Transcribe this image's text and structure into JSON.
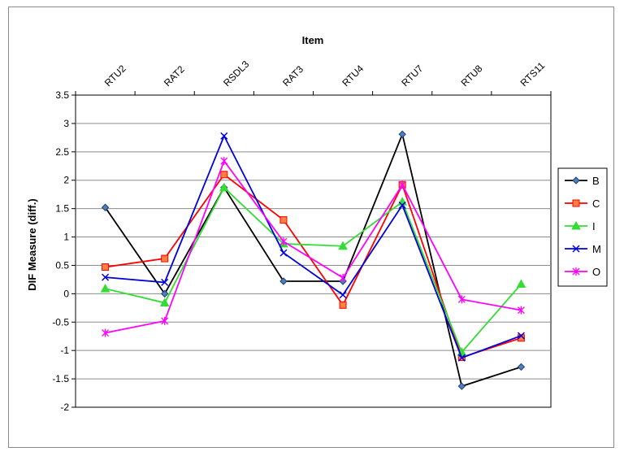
{
  "chart_data": {
    "type": "line",
    "title": "",
    "xlabel": "Item",
    "ylabel": "DIF Measure (diff.)",
    "categories": [
      "RTU2",
      "RAT2",
      "RSDL3",
      "RAT3",
      "RTU4",
      "RTU7",
      "RTU8",
      "RTS11"
    ],
    "ylim": [
      -2,
      3.5
    ],
    "yticks": [
      "3.5",
      "3",
      "2.5",
      "2",
      "1.5",
      "1",
      "0.5",
      "0",
      "-0.5",
      "-1",
      "-1.5",
      "-2"
    ],
    "xaxis_position": "top",
    "grid": true,
    "legend_position": "right",
    "series": [
      {
        "name": "B",
        "color": "#000000",
        "marker": "diamond",
        "values": [
          1.52,
          0.0,
          1.87,
          0.22,
          0.22,
          2.81,
          -1.63,
          -1.29
        ]
      },
      {
        "name": "C",
        "color": "#ff0000",
        "marker": "square",
        "values": [
          0.47,
          0.62,
          2.1,
          1.3,
          -0.2,
          1.92,
          -1.12,
          -0.78
        ]
      },
      {
        "name": "I",
        "color": "#33dd33",
        "marker": "triangle",
        "values": [
          0.09,
          -0.16,
          1.87,
          0.88,
          0.84,
          1.62,
          -1.03,
          0.17
        ]
      },
      {
        "name": "M",
        "color": "#0000dd",
        "marker": "x",
        "values": [
          0.29,
          0.2,
          2.78,
          0.72,
          -0.02,
          1.56,
          -1.13,
          -0.74
        ]
      },
      {
        "name": "O",
        "color": "#ff00ff",
        "marker": "star",
        "values": [
          -0.69,
          -0.48,
          2.34,
          0.92,
          0.28,
          1.92,
          -0.1,
          -0.29
        ]
      }
    ]
  }
}
